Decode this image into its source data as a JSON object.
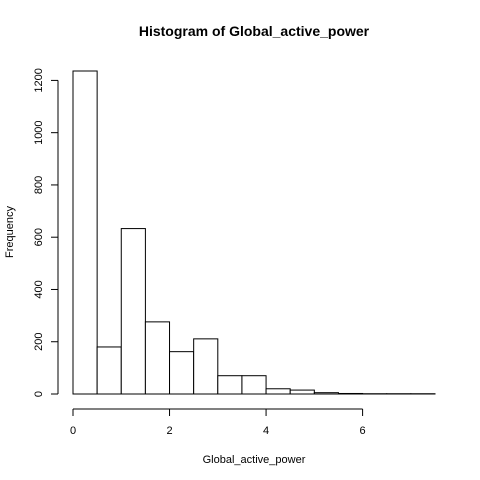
{
  "chart_data": {
    "type": "bar",
    "title": "Histogram of Global_active_power",
    "xlabel": "Global_active_power",
    "ylabel": "Frequency",
    "bin_width": 0.5,
    "bins": [
      {
        "start": 0.0,
        "end": 0.5,
        "count": 1236
      },
      {
        "start": 0.5,
        "end": 1.0,
        "count": 180
      },
      {
        "start": 1.0,
        "end": 1.5,
        "count": 633
      },
      {
        "start": 1.5,
        "end": 2.0,
        "count": 276
      },
      {
        "start": 2.0,
        "end": 2.5,
        "count": 162
      },
      {
        "start": 2.5,
        "end": 3.0,
        "count": 211
      },
      {
        "start": 3.0,
        "end": 3.5,
        "count": 70
      },
      {
        "start": 3.5,
        "end": 4.0,
        "count": 70
      },
      {
        "start": 4.0,
        "end": 4.5,
        "count": 20
      },
      {
        "start": 4.5,
        "end": 5.0,
        "count": 15
      },
      {
        "start": 5.0,
        "end": 5.5,
        "count": 5
      },
      {
        "start": 5.5,
        "end": 6.0,
        "count": 2
      },
      {
        "start": 6.0,
        "end": 6.5,
        "count": 1
      },
      {
        "start": 6.5,
        "end": 7.0,
        "count": 1
      },
      {
        "start": 7.0,
        "end": 7.5,
        "count": 1
      }
    ],
    "x_ticks": [
      0,
      2,
      4,
      6
    ],
    "x_tick_labels": [
      "0",
      "2",
      "4",
      "6"
    ],
    "y_ticks": [
      0,
      200,
      400,
      600,
      800,
      1000,
      1200
    ],
    "y_tick_labels": [
      "0",
      "200",
      "400",
      "600",
      "800",
      "1000",
      "1200"
    ],
    "xlim": [
      0,
      7.5
    ],
    "ylim": [
      0,
      1236
    ],
    "grid": false,
    "legend": "none"
  }
}
